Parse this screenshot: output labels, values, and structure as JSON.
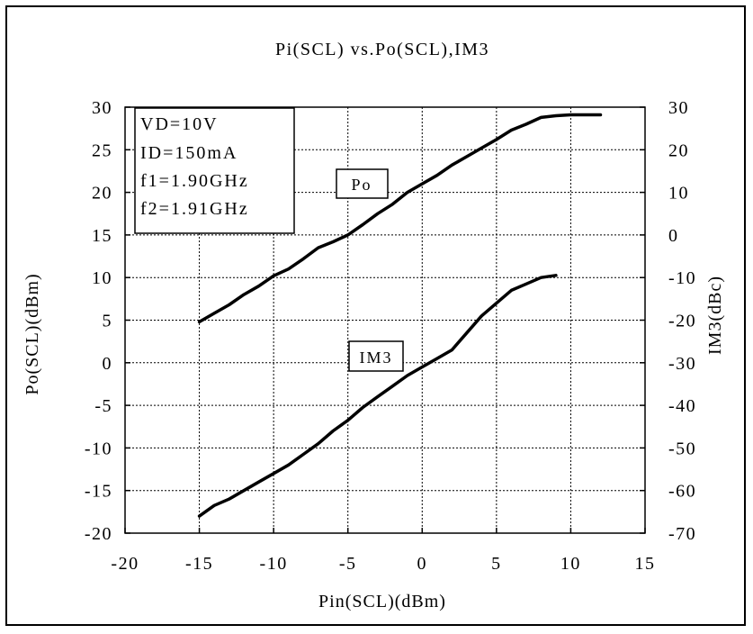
{
  "chart_data": {
    "type": "line",
    "title": "Pi(SCL) vs.Po(SCL),IM3",
    "xlabel": "Pin(SCL)(dBm)",
    "ylabel": "Po(SCL)(dBm)",
    "y2label": "IM3(dBc)",
    "xlim": [
      -20,
      15
    ],
    "ylim": [
      -20,
      30
    ],
    "y2lim": [
      -70,
      30
    ],
    "x_ticks": [
      -20,
      -15,
      -10,
      -5,
      0,
      5,
      10,
      15
    ],
    "y_ticks": [
      -20,
      -15,
      -10,
      -5,
      0,
      5,
      10,
      15,
      20,
      25,
      30
    ],
    "y2_ticks": [
      -70,
      -60,
      -50,
      -40,
      -30,
      -20,
      -10,
      0,
      10,
      20,
      30
    ],
    "grid": true,
    "series": [
      {
        "name": "Po",
        "axis": "left",
        "x": [
          -15,
          -14,
          -13,
          -12,
          -11,
          -10,
          -9,
          -8,
          -7,
          -6,
          -5,
          -4,
          -3,
          -2,
          -1,
          0,
          1,
          2,
          3,
          4,
          5,
          6,
          7,
          8,
          9,
          10,
          11,
          12
        ],
        "y": [
          4.8,
          5.8,
          6.8,
          8.0,
          9.0,
          10.2,
          11.0,
          12.2,
          13.5,
          14.2,
          15.0,
          16.2,
          17.5,
          18.6,
          20.0,
          21.0,
          22.0,
          23.2,
          24.2,
          25.2,
          26.2,
          27.3,
          28.0,
          28.8,
          29.0,
          29.1,
          29.1,
          29.1
        ]
      },
      {
        "name": "IM3",
        "axis": "right",
        "x": [
          -15,
          -14,
          -13,
          -12,
          -11,
          -10,
          -9,
          -8,
          -7,
          -6,
          -5,
          -4,
          -3,
          -2,
          -1,
          0,
          1,
          2,
          3,
          4,
          5,
          6,
          7,
          8,
          9
        ],
        "y": [
          -66,
          -63.5,
          -62,
          -60,
          -58,
          -56,
          -54,
          -51.5,
          -49,
          -46,
          -43.5,
          -40.5,
          -38,
          -35.5,
          -33,
          -31,
          -29,
          -27,
          -23,
          -19,
          -16,
          -13,
          -11.5,
          -10,
          -9.5
        ]
      }
    ],
    "annotations": [
      "VD=10V",
      "ID=150mA",
      "f1=1.90GHz",
      "f2=1.91GHz"
    ],
    "series_labels": [
      "Po",
      "IM3"
    ]
  }
}
